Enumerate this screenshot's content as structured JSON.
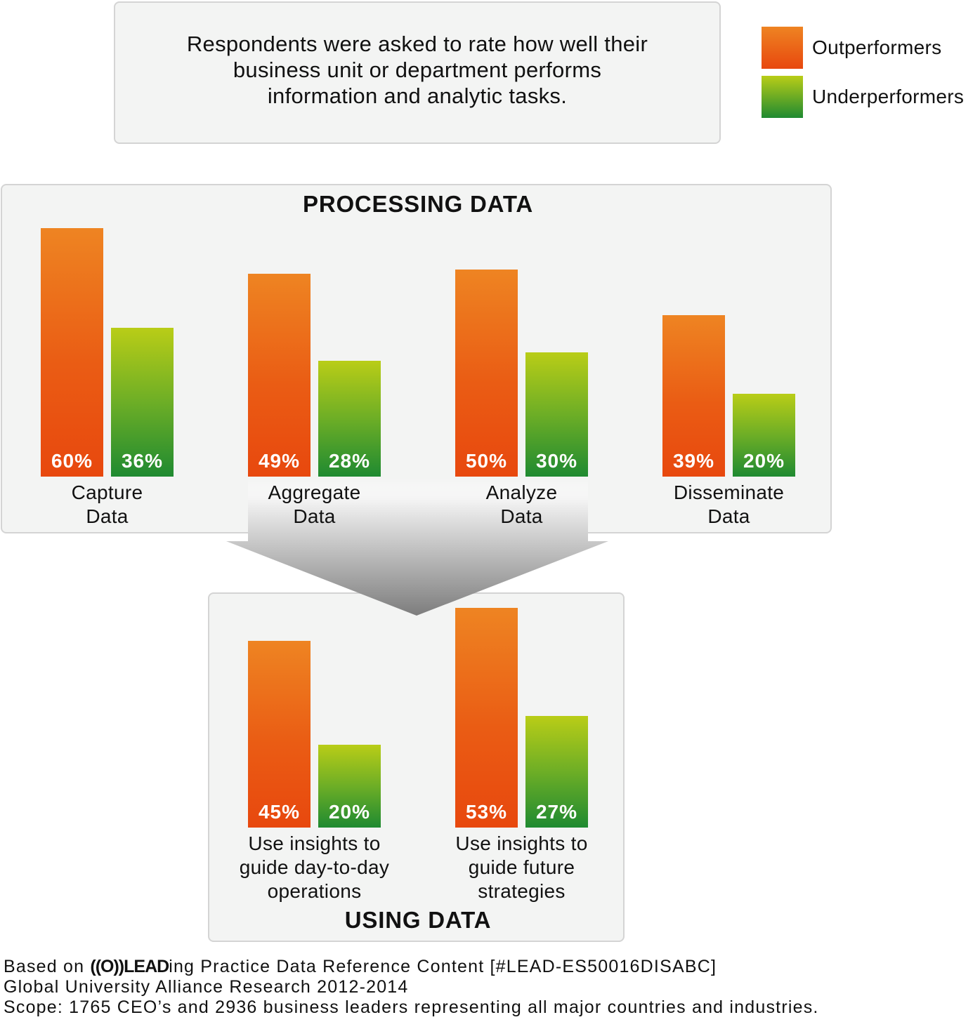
{
  "intro": {
    "text": "Respondents were asked to rate how well their\nbusiness unit or department performs\ninformation and analytic tasks."
  },
  "legend": [
    {
      "label": "Outperformers",
      "color": "#ea5c14"
    },
    {
      "label": "Underperformers",
      "color": "#6dae26"
    }
  ],
  "sections": {
    "processing_title": "PROCESSING DATA",
    "using_title": "USING DATA"
  },
  "chart_data": [
    {
      "type": "bar",
      "title": "PROCESSING DATA",
      "categories": [
        "Capture\nData",
        "Aggregate\nData",
        "Analyze\nData",
        "Disseminate\nData"
      ],
      "series": [
        {
          "name": "Outperformers",
          "values": [
            60,
            49,
            50,
            39
          ]
        },
        {
          "name": "Underperformers",
          "values": [
            36,
            28,
            30,
            20
          ]
        }
      ],
      "labels": {
        "out": [
          "60%",
          "49%",
          "50%",
          "39%"
        ],
        "under": [
          "36%",
          "28%",
          "30%",
          "20%"
        ]
      },
      "unit": "%",
      "ylim": [
        0,
        60
      ],
      "grid": false,
      "legend_position": "top-right"
    },
    {
      "type": "bar",
      "title": "USING DATA",
      "categories": [
        "Use insights to\nguide day-to-day\noperations",
        "Use insights to\nguide future\nstrategies"
      ],
      "series": [
        {
          "name": "Outperformers",
          "values": [
            45,
            53
          ]
        },
        {
          "name": "Underperformers",
          "values": [
            20,
            27
          ]
        }
      ],
      "labels": {
        "out": [
          "45%",
          "53%"
        ],
        "under": [
          "20%",
          "27%"
        ]
      },
      "unit": "%",
      "ylim": [
        0,
        60
      ],
      "grid": false,
      "legend_position": "top-right"
    }
  ],
  "footer": {
    "prefix": "Based on ",
    "logo": "((O))LEAD",
    "line1_rest": "ing Practice Data Reference Content [#LEAD-ES50016DISABC]",
    "line2": "Global University Alliance Research 2012-2014",
    "line3": "Scope: 1765 CEO’s and 2936 business leaders representing all major countries and industries."
  }
}
